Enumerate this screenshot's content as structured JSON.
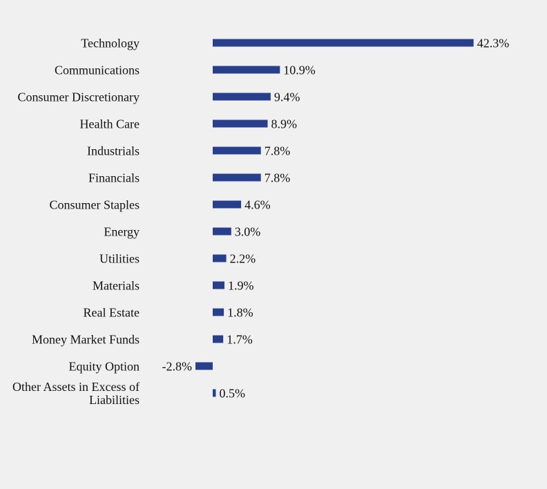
{
  "chart_data": {
    "type": "bar",
    "orientation": "horizontal",
    "categories": [
      "Technology",
      "Communications",
      "Consumer Discretionary",
      "Health Care",
      "Industrials",
      "Financials",
      "Consumer Staples",
      "Energy",
      "Utilities",
      "Materials",
      "Real Estate",
      "Money Market Funds",
      "Equity Option",
      "Other Assets in Excess of Liabilities"
    ],
    "values": [
      42.3,
      10.9,
      9.4,
      8.9,
      7.8,
      7.8,
      4.6,
      3.0,
      2.2,
      1.9,
      1.8,
      1.7,
      -2.8,
      0.5
    ],
    "value_labels": [
      "42.3%",
      "10.9%",
      "9.4%",
      "8.9%",
      "7.8%",
      "7.8%",
      "4.6%",
      "3.0%",
      "2.2%",
      "1.9%",
      "1.8%",
      "1.7%",
      "-2.8%",
      "0.5%"
    ],
    "unit": "%",
    "bar_color": "#283f8c",
    "background": "#f0f0f0",
    "grid": false,
    "legend": "none"
  }
}
